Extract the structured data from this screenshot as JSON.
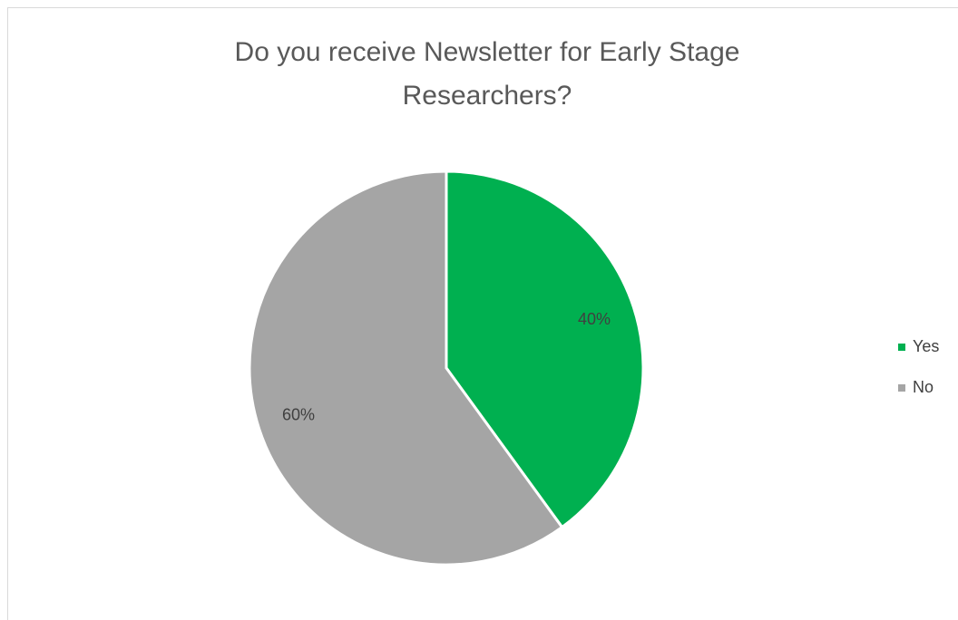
{
  "chart_data": {
    "type": "pie",
    "title": "Do you receive Newsletter for Early Stage Researchers?",
    "categories": [
      "Yes",
      "No"
    ],
    "values": [
      40,
      60
    ],
    "value_labels": [
      "40%",
      "60%"
    ],
    "colors": [
      "#00b050",
      "#a5a5a5"
    ],
    "legend": "right"
  }
}
